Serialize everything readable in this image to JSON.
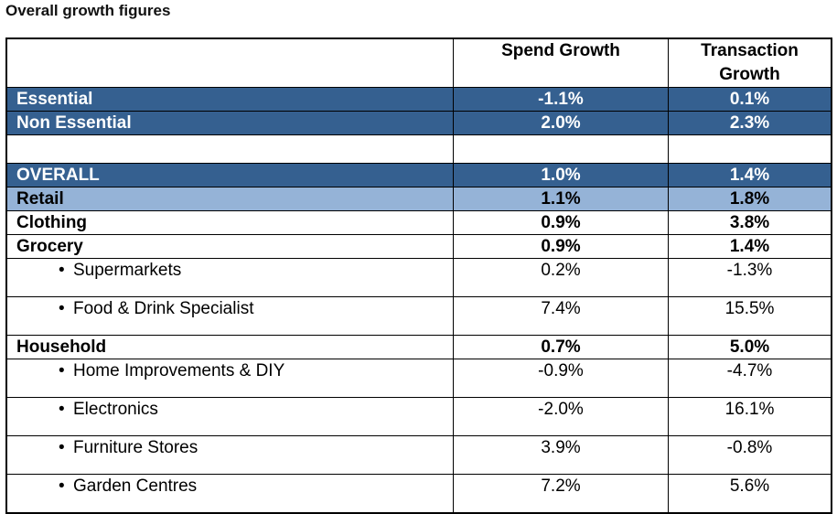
{
  "title": "Overall growth figures",
  "colors": {
    "dark_row": "#356090",
    "light_row": "#95b3d7"
  },
  "columns": [
    "",
    "Spend Growth",
    "Transaction Growth"
  ],
  "rows": [
    {
      "label": "Essential",
      "spend": "-1.1%",
      "transaction": "0.1%",
      "style": "dark"
    },
    {
      "label": "Non Essential",
      "spend": "2.0%",
      "transaction": "2.3%",
      "style": "dark"
    },
    {
      "label": "",
      "spend": "",
      "transaction": "",
      "style": "blank"
    },
    {
      "label": "OVERALL",
      "spend": "1.0%",
      "transaction": "1.4%",
      "style": "dark"
    },
    {
      "label": "Retail",
      "spend": "1.1%",
      "transaction": "1.8%",
      "style": "light"
    },
    {
      "label": "Clothing",
      "spend": "0.9%",
      "transaction": "3.8%",
      "style": "bold"
    },
    {
      "label": "Grocery",
      "spend": "0.9%",
      "transaction": "1.4%",
      "style": "bold"
    },
    {
      "label": "Supermarkets",
      "spend": "0.2%",
      "transaction": "-1.3%",
      "style": "sub"
    },
    {
      "label": "Food & Drink Specialist",
      "spend": "7.4%",
      "transaction": "15.5%",
      "style": "sub"
    },
    {
      "label": "Household",
      "spend": "0.7%",
      "transaction": "5.0%",
      "style": "bold"
    },
    {
      "label": "Home Improvements & DIY",
      "spend": "-0.9%",
      "transaction": "-4.7%",
      "style": "sub"
    },
    {
      "label": "Electronics",
      "spend": "-2.0%",
      "transaction": "16.1%",
      "style": "sub"
    },
    {
      "label": "Furniture Stores",
      "spend": "3.9%",
      "transaction": "-0.8%",
      "style": "sub"
    },
    {
      "label": "Garden Centres",
      "spend": "7.2%",
      "transaction": "5.6%",
      "style": "sub"
    }
  ]
}
